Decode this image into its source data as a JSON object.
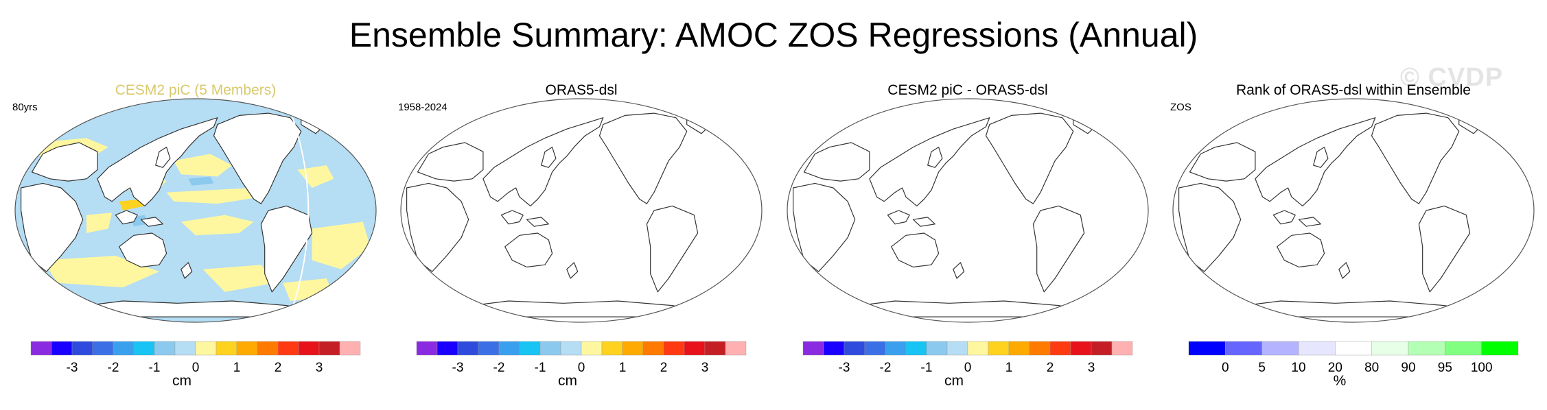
{
  "title": "Ensemble Summary: AMOC ZOS Regressions (Annual)",
  "watermark": "© CVDP",
  "panels": [
    {
      "title": "CESM2 piC (5 Members)",
      "title_color": "#d9c96a",
      "corner_label": "80yrs",
      "has_data": true,
      "colorbar": {
        "colors": [
          "#8a2be2",
          "#1a00ff",
          "#2e4bdd",
          "#3a6fe6",
          "#3aa0ee",
          "#17c4f4",
          "#8cc9ee",
          "#b5ddf3",
          "#fff7a0",
          "#ffd21f",
          "#ffaa00",
          "#ff7a00",
          "#ff3a12",
          "#e8121a",
          "#c51f26",
          "#ffb0b0"
        ],
        "labels": [
          "-3",
          "-2",
          "-1",
          "0",
          "1",
          "2",
          "3"
        ],
        "units": "cm"
      }
    },
    {
      "title": "ORAS5-dsl",
      "title_color": "#000000",
      "corner_label": "1958-2024",
      "has_data": false,
      "colorbar": {
        "colors": [
          "#8a2be2",
          "#1a00ff",
          "#2e4bdd",
          "#3a6fe6",
          "#3aa0ee",
          "#17c4f4",
          "#8cc9ee",
          "#b5ddf3",
          "#fff7a0",
          "#ffd21f",
          "#ffaa00",
          "#ff7a00",
          "#ff3a12",
          "#e8121a",
          "#c51f26",
          "#ffb0b0"
        ],
        "labels": [
          "-3",
          "-2",
          "-1",
          "0",
          "1",
          "2",
          "3"
        ],
        "units": "cm"
      }
    },
    {
      "title": "CESM2 piC - ORAS5-dsl",
      "title_color": "#000000",
      "corner_label": "",
      "has_data": false,
      "colorbar": {
        "colors": [
          "#8a2be2",
          "#1a00ff",
          "#2e4bdd",
          "#3a6fe6",
          "#3aa0ee",
          "#17c4f4",
          "#8cc9ee",
          "#b5ddf3",
          "#fff7a0",
          "#ffd21f",
          "#ffaa00",
          "#ff7a00",
          "#ff3a12",
          "#e8121a",
          "#c51f26",
          "#ffb0b0"
        ],
        "labels": [
          "-3",
          "-2",
          "-1",
          "0",
          "1",
          "2",
          "3"
        ],
        "units": "cm"
      }
    },
    {
      "title": "Rank of ORAS5-dsl within Ensemble",
      "title_color": "#000000",
      "corner_label": "ZOS",
      "has_data": false,
      "colorbar": {
        "colors": [
          "#0000ff",
          "#6666ff",
          "#b3b3ff",
          "#e6e6ff",
          "#ffffff",
          "#e6ffe6",
          "#b3ffb3",
          "#80ff80",
          "#00ff00"
        ],
        "labels": [
          "0",
          "5",
          "10",
          "20",
          "80",
          "90",
          "95",
          "100"
        ],
        "units": "%"
      }
    }
  ]
}
